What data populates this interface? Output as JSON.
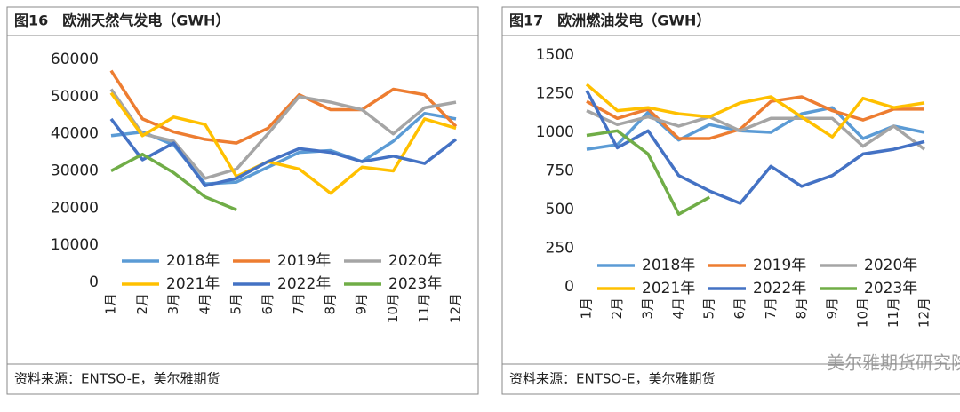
{
  "chart_data": [
    {
      "type": "line",
      "title": "图16　欧洲天然气发电（GWH）",
      "source": "资料来源：ENTSO-E，美尔雅期货",
      "categories": [
        "1月",
        "2月",
        "3月",
        "4月",
        "5月",
        "6月",
        "7月",
        "8月",
        "9月",
        "10月",
        "11月",
        "12月"
      ],
      "ylim": [
        0,
        60000
      ],
      "yticks": [
        0,
        10000,
        20000,
        30000,
        40000,
        50000,
        60000
      ],
      "grid": false,
      "series": [
        {
          "name": "2018年",
          "color": "#5B9BD5",
          "values": [
            39500,
            40500,
            37000,
            26500,
            27000,
            31000,
            35000,
            35500,
            32500,
            38000,
            45500,
            44000
          ]
        },
        {
          "name": "2019年",
          "color": "#ED7D31",
          "values": [
            57000,
            44000,
            40500,
            38500,
            37500,
            41500,
            50500,
            46500,
            46500,
            52000,
            50500,
            42000
          ]
        },
        {
          "name": "2020年",
          "color": "#A5A5A5",
          "values": [
            52000,
            40000,
            38000,
            28000,
            30500,
            40000,
            50000,
            48500,
            46500,
            40000,
            47000,
            48500
          ]
        },
        {
          "name": "2021年",
          "color": "#FFC000",
          "values": [
            51000,
            39500,
            44500,
            42500,
            28500,
            32500,
            30500,
            24000,
            31000,
            30000,
            44000,
            41500
          ]
        },
        {
          "name": "2022年",
          "color": "#4472C4",
          "values": [
            44000,
            33000,
            37500,
            26000,
            28000,
            32500,
            36000,
            35000,
            32500,
            34000,
            32000,
            38500
          ]
        },
        {
          "name": "2023年",
          "color": "#70AD47",
          "values": [
            30000,
            34500,
            29500,
            23000,
            19500,
            null,
            null,
            null,
            null,
            null,
            null,
            null
          ]
        }
      ]
    },
    {
      "type": "line",
      "title": "图17　欧洲燃油发电（GWH）",
      "source": "资料来源：ENTSO-E，美尔雅期货",
      "watermark": "美尔雅期货研究院",
      "categories": [
        "1月",
        "2月",
        "3月",
        "4月",
        "5月",
        "6月",
        "7月",
        "8月",
        "9月",
        "10月",
        "11月",
        "12月"
      ],
      "ylim": [
        0,
        1500
      ],
      "yticks": [
        0,
        250,
        500,
        750,
        1000,
        1250,
        1500
      ],
      "grid": false,
      "series": [
        {
          "name": "2018年",
          "color": "#5B9BD5",
          "values": [
            890,
            920,
            1130,
            950,
            1050,
            1010,
            1000,
            1120,
            1160,
            960,
            1040,
            1000
          ]
        },
        {
          "name": "2019年",
          "color": "#ED7D31",
          "values": [
            1200,
            1090,
            1150,
            960,
            960,
            1020,
            1200,
            1230,
            1140,
            1080,
            1150,
            1150
          ]
        },
        {
          "name": "2020年",
          "color": "#A5A5A5",
          "values": [
            1140,
            1050,
            1100,
            1040,
            1100,
            1010,
            1090,
            1090,
            1090,
            910,
            1040,
            890
          ]
        },
        {
          "name": "2021年",
          "color": "#FFC000",
          "values": [
            1310,
            1140,
            1160,
            1120,
            1100,
            1190,
            1230,
            1100,
            970,
            1220,
            1160,
            1190
          ]
        },
        {
          "name": "2022年",
          "color": "#4472C4",
          "values": [
            1270,
            900,
            1010,
            720,
            620,
            540,
            780,
            650,
            720,
            860,
            890,
            940
          ]
        },
        {
          "name": "2023年",
          "color": "#70AD47",
          "values": [
            980,
            1010,
            860,
            470,
            580,
            null,
            null,
            null,
            null,
            null,
            null,
            null
          ]
        }
      ]
    }
  ]
}
